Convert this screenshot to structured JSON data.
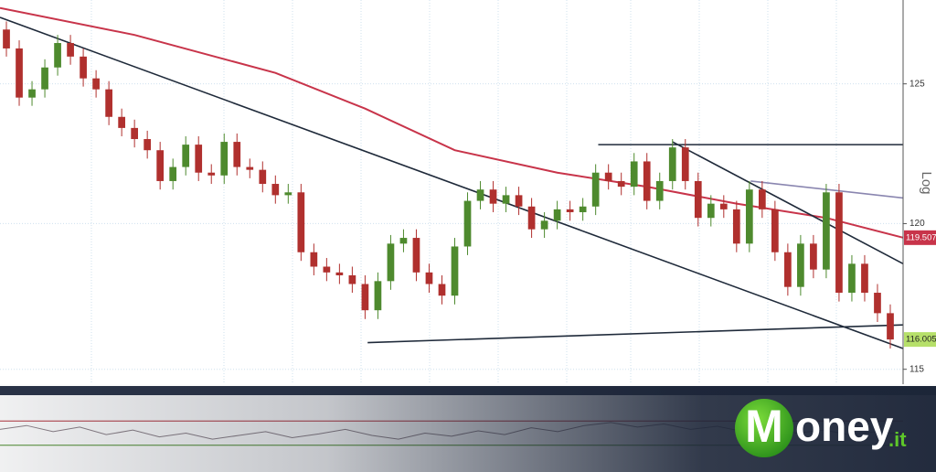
{
  "chart_data": {
    "type": "candlestick",
    "axis_label": "Log",
    "log_scale": true,
    "up_color": "#4e8a2e",
    "down_color": "#b0302e",
    "xlim": [
      -0.5,
      70
    ],
    "ylim": [
      114.5,
      128.1
    ],
    "yticks": [
      115,
      120,
      125
    ],
    "grid": true,
    "open": [
      127.0,
      126.3,
      124.5,
      124.8,
      125.6,
      126.5,
      126.0,
      125.2,
      124.8,
      123.8,
      123.4,
      123.0,
      122.6,
      121.5,
      122.0,
      122.8,
      121.8,
      121.7,
      122.9,
      122.0,
      121.9,
      121.4,
      121.0,
      121.1,
      119.0,
      118.5,
      118.3,
      118.2,
      117.9,
      117.0,
      118.0,
      119.3,
      119.5,
      118.3,
      117.9,
      117.5,
      119.2,
      120.8,
      121.2,
      120.7,
      121.0,
      120.6,
      119.8,
      120.1,
      120.5,
      120.4,
      120.6,
      121.8,
      121.5,
      121.3,
      122.2,
      120.8,
      121.5,
      122.7,
      121.5,
      120.2,
      120.7,
      120.5,
      119.3,
      121.2,
      120.5,
      119.0,
      117.8,
      119.3,
      118.4,
      121.1,
      117.6,
      118.6,
      117.6,
      116.9
    ],
    "high": [
      127.3,
      126.6,
      125.1,
      125.9,
      126.8,
      126.8,
      126.3,
      125.5,
      125.1,
      124.1,
      123.7,
      123.3,
      122.9,
      122.3,
      123.1,
      123.1,
      122.1,
      123.2,
      123.2,
      122.3,
      122.2,
      121.7,
      121.4,
      121.4,
      119.3,
      118.8,
      118.6,
      118.5,
      118.2,
      118.3,
      119.6,
      119.8,
      119.8,
      118.6,
      118.2,
      119.5,
      121.1,
      121.5,
      121.5,
      121.3,
      121.3,
      120.9,
      120.4,
      120.8,
      120.8,
      120.9,
      122.1,
      122.1,
      121.8,
      122.5,
      122.5,
      121.8,
      123.0,
      123.0,
      121.8,
      121.0,
      121.0,
      120.8,
      121.5,
      121.5,
      120.8,
      119.3,
      119.6,
      119.6,
      121.4,
      121.4,
      118.9,
      118.9,
      117.9,
      117.2
    ],
    "low": [
      126.0,
      124.2,
      124.2,
      124.5,
      125.3,
      125.7,
      124.9,
      124.5,
      123.5,
      123.1,
      122.7,
      122.3,
      121.2,
      121.2,
      121.7,
      121.5,
      121.4,
      121.4,
      121.7,
      121.6,
      121.1,
      120.7,
      120.7,
      118.7,
      118.2,
      118.0,
      117.9,
      117.6,
      116.7,
      116.7,
      117.7,
      119.0,
      118.0,
      117.6,
      117.2,
      117.2,
      118.9,
      120.5,
      120.4,
      120.4,
      120.3,
      119.5,
      119.5,
      119.8,
      120.1,
      120.1,
      120.3,
      121.2,
      121.0,
      121.0,
      120.5,
      120.5,
      121.2,
      121.2,
      119.9,
      119.9,
      120.2,
      119.0,
      119.0,
      120.2,
      118.7,
      117.5,
      117.5,
      118.1,
      118.1,
      117.3,
      117.3,
      117.3,
      116.6,
      115.7
    ],
    "close": [
      126.3,
      124.5,
      124.8,
      125.6,
      126.5,
      126.0,
      125.2,
      124.8,
      123.8,
      123.4,
      123.0,
      122.6,
      121.5,
      122.0,
      122.8,
      121.8,
      121.7,
      122.9,
      122.0,
      121.9,
      121.4,
      121.0,
      121.1,
      119.0,
      118.5,
      118.3,
      118.2,
      117.9,
      117.0,
      118.0,
      119.3,
      119.5,
      118.3,
      117.9,
      117.5,
      119.2,
      120.8,
      121.2,
      120.7,
      121.0,
      120.6,
      119.8,
      120.1,
      120.5,
      120.4,
      120.6,
      121.8,
      121.5,
      121.3,
      122.2,
      120.8,
      121.5,
      122.7,
      121.5,
      120.2,
      120.7,
      120.5,
      119.3,
      121.2,
      120.5,
      119.0,
      117.8,
      119.3,
      118.4,
      121.1,
      117.6,
      118.6,
      117.6,
      116.9,
      116.0052
    ],
    "moving_average": {
      "color": "#c8344a",
      "x": [
        -0.5,
        10,
        21,
        28,
        35,
        43,
        50,
        57,
        64,
        70
      ],
      "values": [
        127.8,
        126.8,
        125.4,
        124.1,
        122.6,
        121.8,
        121.3,
        120.7,
        120.2,
        119.5073
      ],
      "value_label": "119.5073"
    },
    "last_price_label": "116.0052",
    "trendlines": [
      {
        "color": "#1f2a3a",
        "x": [
          -0.5,
          70
        ],
        "values": [
          127.45,
          115.7
        ]
      },
      {
        "color": "#1f2a3a",
        "x": [
          28.2,
          70
        ],
        "values": [
          115.9,
          116.5
        ]
      },
      {
        "color": "#1f2a3a",
        "x": [
          46.2,
          70
        ],
        "values": [
          122.8,
          122.8
        ]
      },
      {
        "color": "#1f2a3a",
        "x": [
          52,
          70
        ],
        "values": [
          122.9,
          118.6
        ]
      },
      {
        "color": "#8a86b0",
        "x": [
          58.1,
          70
        ],
        "values": [
          121.5,
          120.9
        ]
      }
    ],
    "oscillator": {
      "color": "#8a7f86",
      "ylim": [
        0,
        100
      ],
      "levels": [
        66,
        34
      ],
      "level_colors": [
        "#b0303a",
        "#4a8a2a"
      ],
      "values": [
        55,
        60,
        52,
        58,
        48,
        54,
        45,
        50,
        42,
        47,
        52,
        44,
        49,
        55,
        47,
        42,
        50,
        46,
        53,
        48,
        57,
        52,
        60,
        64,
        58,
        62,
        55,
        59,
        52,
        56,
        50,
        54,
        48,
        52,
        49
      ]
    }
  },
  "logo": {
    "initial": "M",
    "name": "oney",
    "suffix": ".it"
  }
}
